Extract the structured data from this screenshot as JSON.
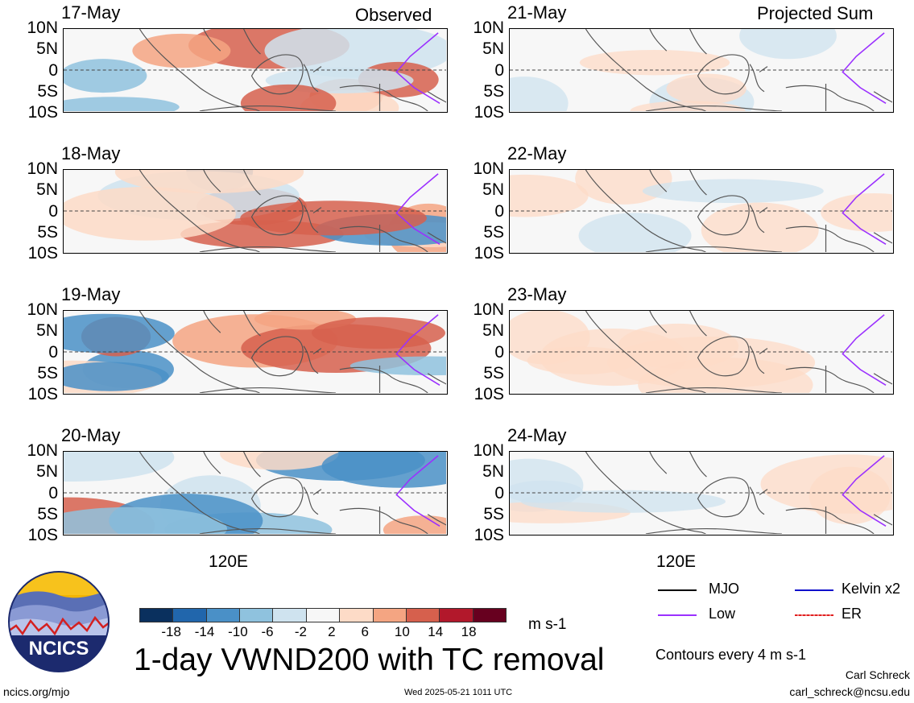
{
  "headers": {
    "left": "Observed",
    "right": "Projected Sum"
  },
  "panels": {
    "left": [
      {
        "date": "17-May"
      },
      {
        "date": "18-May"
      },
      {
        "date": "19-May"
      },
      {
        "date": "20-May"
      }
    ],
    "right": [
      {
        "date": "21-May"
      },
      {
        "date": "22-May"
      },
      {
        "date": "23-May"
      },
      {
        "date": "24-May"
      }
    ]
  },
  "lat_labels": [
    "10N",
    "5N",
    "0",
    "5S",
    "10S"
  ],
  "lon_label": "120E",
  "colorbar": {
    "colors": [
      "#0a305e",
      "#2166ac",
      "#4a90c7",
      "#8fc2de",
      "#cfe3ef",
      "#f7f7f7",
      "#fddbc7",
      "#f4a582",
      "#d6604d",
      "#b2182b",
      "#67001f"
    ],
    "labels": [
      "-18",
      "-14",
      "-10",
      "-6",
      "-2",
      "2",
      "6",
      "10",
      "14",
      "18"
    ],
    "units": "m s-1"
  },
  "legend": {
    "mjo": "MJO",
    "kelvin": "Kelvin x2",
    "low": "Low",
    "er": "ER",
    "colors": {
      "mjo": "#000000",
      "kelvin": "#1010cc",
      "low": "#9b30ff",
      "er": "#e02020"
    }
  },
  "contour_note": "Contours every 4 m s-1",
  "title": "1-day VWND200 with TC removal",
  "logo": {
    "text": "NCICS"
  },
  "footer": {
    "url": "ncics.org/mjo",
    "timestamp": "Wed 2025-05-21 1011 UTC",
    "author": "Carl Schreck",
    "email": "carl_schreck@ncsu.edu"
  }
}
